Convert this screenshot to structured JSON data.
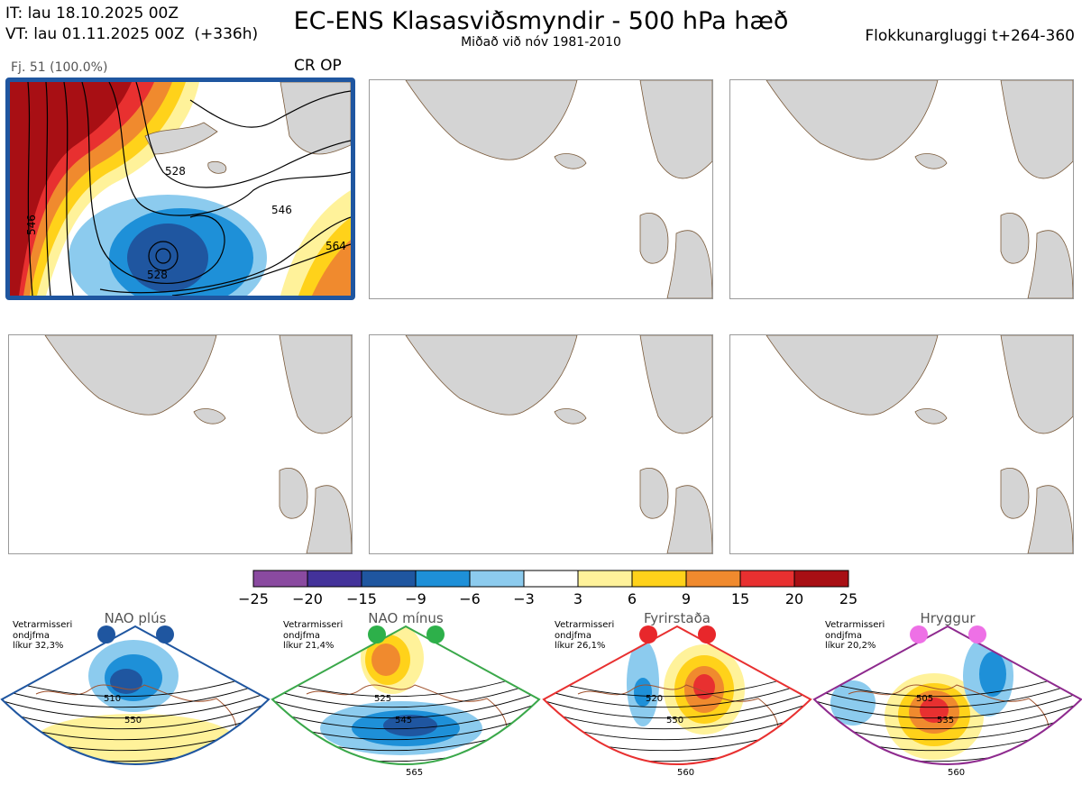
{
  "header": {
    "init_time": "IT: lau 18.10.2025 00Z",
    "valid_time": "VT: lau 01.11.2025 00Z  (+336h)",
    "title": "EC-ENS Klasasviðsmyndir - 500 hPa hæð",
    "subtitle": "Miðað við nóv 1981-2010",
    "window_label": "Flokkunargluggi t+264-360"
  },
  "cluster": {
    "label": "Fj. 51 (100.0%)",
    "type": "CR OP",
    "contour_labels": [
      "528",
      "546",
      "564",
      "528",
      "546"
    ],
    "highlight_color": "#1f56a0"
  },
  "panels": [
    {
      "id": 1,
      "filled": true
    },
    {
      "id": 2,
      "filled": false
    },
    {
      "id": 3,
      "filled": false
    },
    {
      "id": 4,
      "filled": false
    },
    {
      "id": 5,
      "filled": false
    },
    {
      "id": 6,
      "filled": false
    }
  ],
  "colorbar": {
    "labels": [
      "−25",
      "−20",
      "−15",
      "−9",
      "−6",
      "−3",
      "3",
      "6",
      "9",
      "15",
      "20",
      "25"
    ],
    "colors": [
      "#8a4aa0",
      "#43329a",
      "#1f56a0",
      "#1e90d8",
      "#8ccbee",
      "#ffffff",
      "#fff29a",
      "#ffd21a",
      "#f08a2e",
      "#e83030",
      "#a80f14"
    ]
  },
  "regimes": [
    {
      "name": "NAO plús",
      "info": [
        "Vetrarmisseri",
        "ondjfma",
        "líkur 32,3%"
      ],
      "border": "#1f56a0",
      "dot": "#1f56a0",
      "contours": [
        "510",
        "550"
      ]
    },
    {
      "name": "NAO mínus",
      "info": [
        "Vetrarmisseri",
        "ondjfma",
        "líkur 21,4%"
      ],
      "border": "#3aa84a",
      "dot": "#2db04a",
      "contours": [
        "525",
        "545",
        "565"
      ]
    },
    {
      "name": "Fyrirstaða",
      "info": [
        "Vetrarmisseri",
        "ondjfma",
        "líkur 26,1%"
      ],
      "border": "#e83030",
      "dot": "#e8272b",
      "contours": [
        "520",
        "550",
        "560"
      ]
    },
    {
      "name": "Hryggur",
      "info": [
        "Vetrarmisseri",
        "ondjfma",
        "líkur 20,2%"
      ],
      "border": "#8e2a8e",
      "dot": "#ee70e6",
      "contours": [
        "505",
        "535",
        "560"
      ]
    }
  ]
}
